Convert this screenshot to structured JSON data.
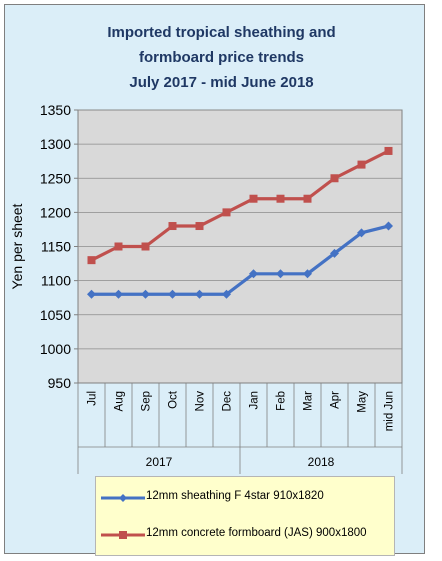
{
  "chart_data": {
    "type": "line",
    "title": [
      "Imported tropical sheathing and",
      "formboard price trends",
      "July 2017 - mid June 2018"
    ],
    "ylabel": "Yen per sheet",
    "xlabel": "",
    "ylim": [
      950,
      1350
    ],
    "yticks": [
      950,
      1000,
      1050,
      1100,
      1150,
      1200,
      1250,
      1300,
      1350
    ],
    "categories": [
      "Jul",
      "Aug",
      "Sep",
      "Oct",
      "Nov",
      "Dec",
      "Jan",
      "Feb",
      "Mar",
      "Apr",
      "May",
      "mid Jun"
    ],
    "year_groups": [
      {
        "label": "2017",
        "count": 6
      },
      {
        "label": "2018",
        "count": 6
      }
    ],
    "grid": true,
    "legend_position": "bottom",
    "series": [
      {
        "name": "12mm sheathing F 4star 910x1820",
        "color": "#4472c4",
        "marker": "diamond",
        "values": [
          1080,
          1080,
          1080,
          1080,
          1080,
          1080,
          1110,
          1110,
          1110,
          1140,
          1170,
          1180
        ]
      },
      {
        "name": "12mm concrete formboard (JAS) 900x1800",
        "color": "#c0504d",
        "marker": "square",
        "values": [
          1130,
          1150,
          1150,
          1180,
          1180,
          1200,
          1220,
          1220,
          1220,
          1250,
          1270,
          1290
        ]
      }
    ]
  }
}
